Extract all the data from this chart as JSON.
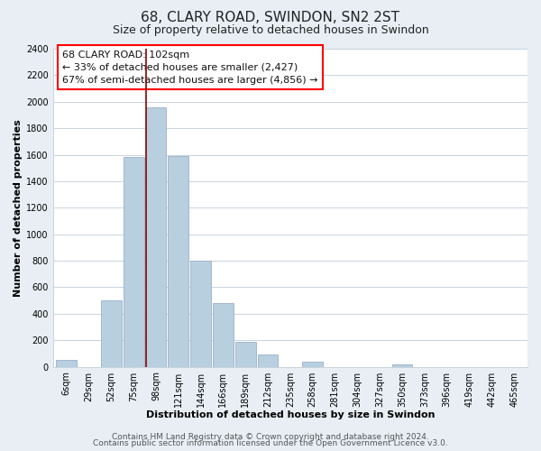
{
  "title": "68, CLARY ROAD, SWINDON, SN2 2ST",
  "subtitle": "Size of property relative to detached houses in Swindon",
  "xlabel": "Distribution of detached houses by size in Swindon",
  "ylabel": "Number of detached properties",
  "bar_color": "#b8cfe0",
  "bar_edge_color": "#9ab0c8",
  "categories": [
    "6sqm",
    "29sqm",
    "52sqm",
    "75sqm",
    "98sqm",
    "121sqm",
    "144sqm",
    "166sqm",
    "189sqm",
    "212sqm",
    "235sqm",
    "258sqm",
    "281sqm",
    "304sqm",
    "327sqm",
    "350sqm",
    "373sqm",
    "396sqm",
    "419sqm",
    "442sqm",
    "465sqm"
  ],
  "values": [
    50,
    0,
    500,
    1580,
    1960,
    1590,
    800,
    480,
    185,
    90,
    0,
    35,
    0,
    0,
    0,
    20,
    0,
    0,
    0,
    0,
    0
  ],
  "highlight_index": 4,
  "ylim": [
    0,
    2400
  ],
  "yticks": [
    0,
    200,
    400,
    600,
    800,
    1000,
    1200,
    1400,
    1600,
    1800,
    2000,
    2200,
    2400
  ],
  "annotation_title": "68 CLARY ROAD: 102sqm",
  "annotation_line1": "← 33% of detached houses are smaller (2,427)",
  "annotation_line2": "67% of semi-detached houses are larger (4,856) →",
  "footer1": "Contains HM Land Registry data © Crown copyright and database right 2024.",
  "footer2": "Contains public sector information licensed under the Open Government Licence v3.0.",
  "background_color": "#e8eef4",
  "plot_background_color": "#ffffff",
  "grid_color": "#c8d4de",
  "title_fontsize": 11,
  "subtitle_fontsize": 9,
  "axis_label_fontsize": 8,
  "tick_fontsize": 7,
  "annotation_fontsize": 8,
  "footer_fontsize": 6.5
}
